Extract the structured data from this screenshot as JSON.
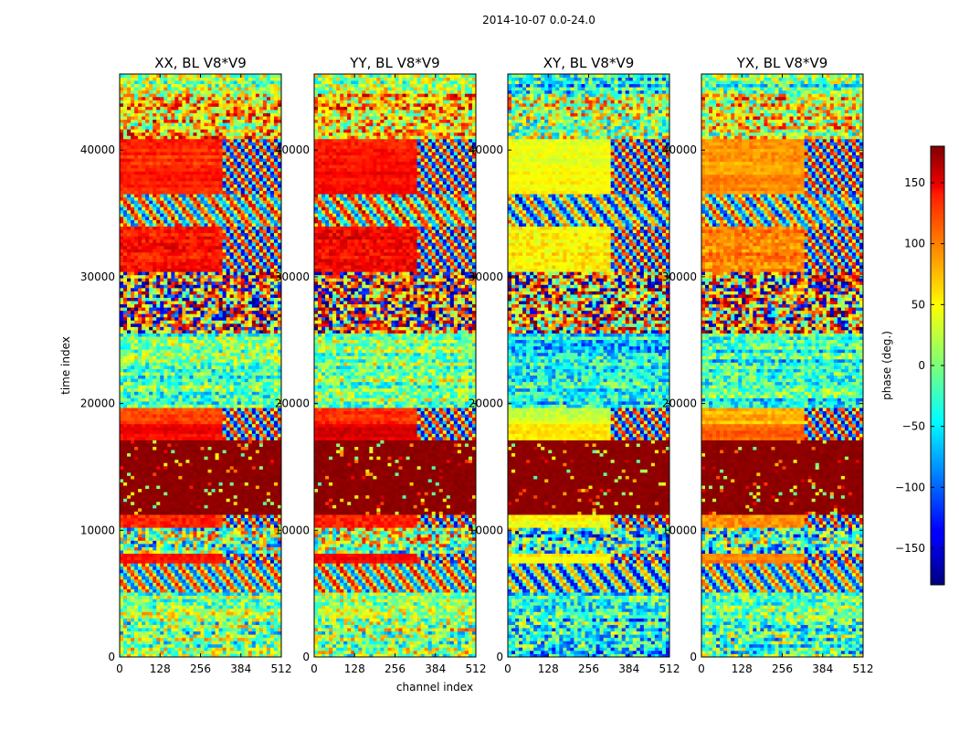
{
  "chart_data": {
    "type": "heatmap",
    "suptitle": "2014-10-07 0.0-24.0",
    "xlabel": "channel index",
    "ylabel": "time index",
    "xlim": [
      0,
      512
    ],
    "ylim": [
      0,
      46000
    ],
    "x_ticks": [
      0,
      128,
      256,
      384,
      512
    ],
    "y_ticks": [
      0,
      10000,
      20000,
      30000,
      40000
    ],
    "panels": [
      {
        "title": "XX, BL V8*V9",
        "polarization": "XX"
      },
      {
        "title": "YY, BL V8*V9",
        "polarization": "YY"
      },
      {
        "title": "XY, BL V8*V9",
        "polarization": "XY"
      },
      {
        "title": "YX, BL V8*V9",
        "polarization": "YX"
      }
    ],
    "colorbar": {
      "label": "phase (deg.)",
      "colormap": "jet",
      "range": [
        -180,
        180
      ],
      "ticks": [
        -150,
        -100,
        -50,
        0,
        50,
        100,
        150
      ],
      "tick_labels": [
        "−150",
        "−100",
        "−50",
        "0",
        "50",
        "100",
        "150"
      ]
    },
    "bands": [
      {
        "t0": 0,
        "t1": 3000,
        "kind": "noise",
        "mean": 0,
        "spread": 80
      },
      {
        "t0": 3000,
        "t1": 5000,
        "kind": "noise",
        "mean": 0,
        "spread": 60
      },
      {
        "t0": 5000,
        "t1": 7500,
        "kind": "fringe",
        "mean": 10,
        "spread": 30
      },
      {
        "t0": 7500,
        "t1": 8300,
        "kind": "solid",
        "mean": 130,
        "spread": 20
      },
      {
        "t0": 8300,
        "t1": 10300,
        "kind": "noise",
        "mean": 0,
        "spread": 110
      },
      {
        "t0": 10300,
        "t1": 11200,
        "kind": "solid",
        "mean": 120,
        "spread": 30
      },
      {
        "t0": 11200,
        "t1": 17200,
        "kind": "saturated",
        "mean": 179,
        "spread": 5
      },
      {
        "t0": 17200,
        "t1": 18500,
        "kind": "solid",
        "mean": 140,
        "spread": 20
      },
      {
        "t0": 18500,
        "t1": 19800,
        "kind": "solid",
        "mean": 110,
        "spread": 25
      },
      {
        "t0": 19800,
        "t1": 25500,
        "kind": "noise",
        "mean": -10,
        "spread": 55
      },
      {
        "t0": 25500,
        "t1": 30500,
        "kind": "noise",
        "mean": 120,
        "spread": 140
      },
      {
        "t0": 30500,
        "t1": 34000,
        "kind": "solid",
        "mean": 130,
        "spread": 40
      },
      {
        "t0": 34000,
        "t1": 36500,
        "kind": "fringe",
        "mean": 20,
        "spread": 60
      },
      {
        "t0": 36500,
        "t1": 38500,
        "kind": "solid",
        "mean": 125,
        "spread": 20
      },
      {
        "t0": 38500,
        "t1": 41000,
        "kind": "solid",
        "mean": 120,
        "spread": 25
      },
      {
        "t0": 41000,
        "t1": 44500,
        "kind": "noise",
        "mean": 60,
        "spread": 90
      },
      {
        "t0": 44500,
        "t1": 46000,
        "kind": "noise",
        "mean": 0,
        "spread": 70
      }
    ]
  }
}
